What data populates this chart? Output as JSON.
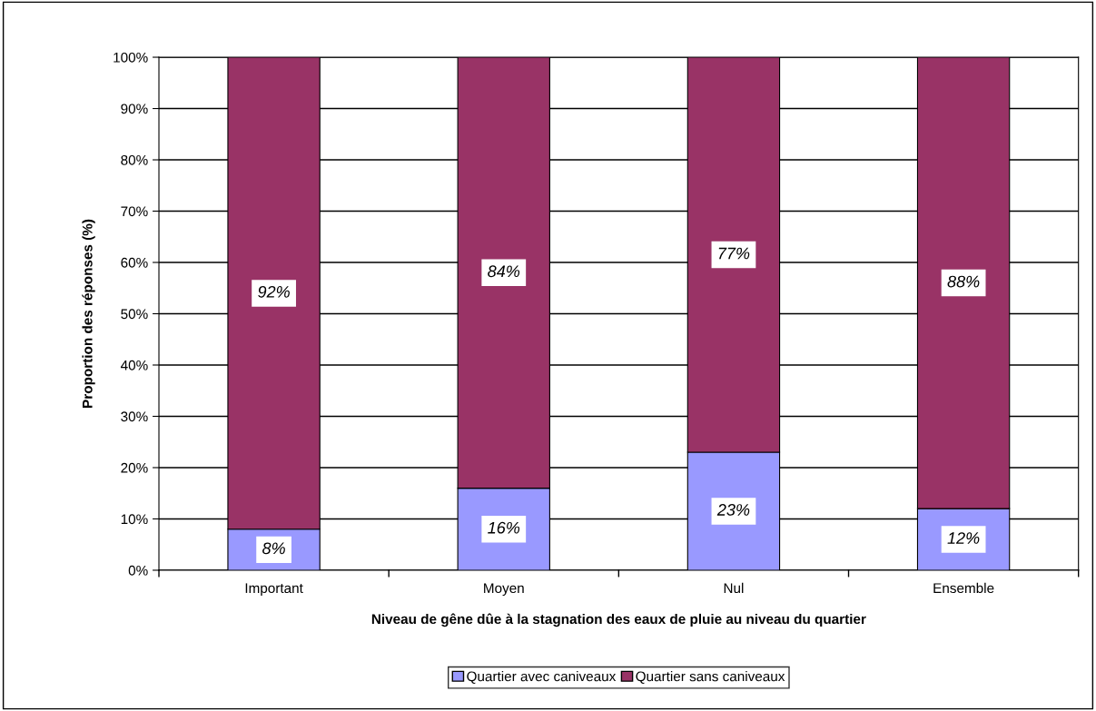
{
  "chart_data": {
    "type": "bar",
    "stacked": true,
    "xlabel": "Niveau de gêne dûe à la stagnation des eaux de pluie au niveau du quartier",
    "ylabel": "Proportion des réponses (%)",
    "categories": [
      "Important",
      "Moyen",
      "Nul",
      "Ensemble"
    ],
    "series": [
      {
        "name": "Quartier avec caniveaux",
        "color": "#9999ff",
        "values": [
          8,
          16,
          23,
          12
        ],
        "value_labels": [
          "8%",
          "16%",
          "23%",
          "12%"
        ]
      },
      {
        "name": "Quartier sans caniveaux",
        "color": "#993366",
        "values": [
          92,
          84,
          77,
          88
        ],
        "value_labels": [
          "92%",
          "84%",
          "77%",
          "88%"
        ]
      }
    ],
    "ylim": [
      0,
      100
    ],
    "yticks": [
      {
        "value": 0,
        "label": "0%"
      },
      {
        "value": 10,
        "label": "10%"
      },
      {
        "value": 20,
        "label": "20%"
      },
      {
        "value": 30,
        "label": "30%"
      },
      {
        "value": 40,
        "label": "40%"
      },
      {
        "value": 50,
        "label": "50%"
      },
      {
        "value": 60,
        "label": "60%"
      },
      {
        "value": 70,
        "label": "70%"
      },
      {
        "value": 80,
        "label": "80%"
      },
      {
        "value": 90,
        "label": "90%"
      },
      {
        "value": 100,
        "label": "100%"
      }
    ],
    "grid": "y",
    "legend": "bottom"
  }
}
